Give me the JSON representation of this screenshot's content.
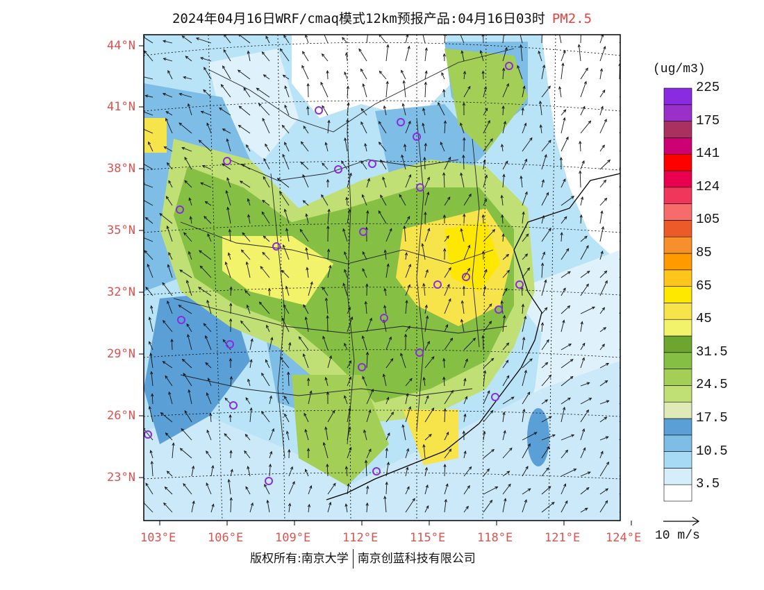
{
  "title": {
    "main": "2024年04月16日WRF/cmaq模式12km预报产品:04月16日03时",
    "pollutant": "PM2.5"
  },
  "map": {
    "lat_labels": [
      "44°N",
      "41°N",
      "38°N",
      "35°N",
      "32°N",
      "29°N",
      "26°N",
      "23°N"
    ],
    "lon_labels": [
      "103°E",
      "106°E",
      "109°E",
      "112°E",
      "115°E",
      "118°E",
      "121°E",
      "124°E"
    ],
    "lat_range": [
      21,
      44.5
    ],
    "lon_range": [
      102.7,
      124
    ]
  },
  "legend": {
    "unit": "(ug/m3)",
    "colors": [
      "#ffffff",
      "#d6eef9",
      "#a7daf4",
      "#7dbde6",
      "#5a9fd6",
      "#dfeab8",
      "#c0df74",
      "#a3cf56",
      "#85bf43",
      "#6ca62f",
      "#f2f36a",
      "#f7e34a",
      "#ffe800",
      "#ffc51d",
      "#ff9b00",
      "#f78f2a",
      "#ec5a29",
      "#f76b6b",
      "#f0375b",
      "#e8004e",
      "#ff0000",
      "#cc0073",
      "#a9305f",
      "#9930c9",
      "#8a2be2"
    ],
    "labels": [
      "3.5",
      "10.5",
      "17.5",
      "24.5",
      "31.5",
      "45",
      "65",
      "85",
      "105",
      "124",
      "141",
      "175",
      "225"
    ]
  },
  "wind_scale": {
    "label": "10 m/s"
  },
  "copyright": {
    "prefix": "版权所有:",
    "org1": "南京大学",
    "org2": "南京创蓝科技有限公司"
  }
}
